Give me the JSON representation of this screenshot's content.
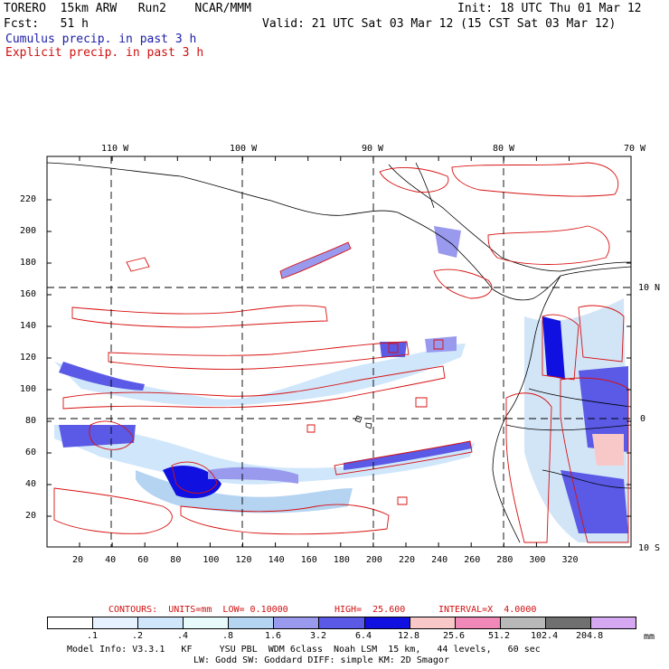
{
  "header": {
    "model_line": "TORERO  15km ARW   Run2    NCAR/MMM",
    "init_line": "Init: 18 UTC Thu 01 Mar 12",
    "fcst_line": "Fcst:   51 h",
    "valid_line": "Valid: 21 UTC Sat 03 Mar 12 (15 CST Sat 03 Mar 12)",
    "cumulus_label": "Cumulus precip. in past 3 h",
    "explicit_label": "Explicit precip. in past 3 h"
  },
  "map": {
    "lon_labels": [
      "110 W",
      "100 W",
      "90 W",
      "80 W",
      "70 W"
    ],
    "lat_labels": [
      "10 N",
      "0",
      "10 S"
    ],
    "x_ticks": [
      "20",
      "40",
      "60",
      "80",
      "100",
      "120",
      "140",
      "160",
      "180",
      "200",
      "220",
      "240",
      "260",
      "280",
      "300",
      "320"
    ],
    "y_ticks": [
      "20",
      "40",
      "60",
      "80",
      "100",
      "120",
      "140",
      "160",
      "180",
      "200",
      "220"
    ]
  },
  "contours": {
    "units_label": "CONTOURS:  UNITS=mm  LOW= 0.10000",
    "high_label": "HIGH=  25.600",
    "interval_label": "INTERVAL=X  4.0000"
  },
  "colorbar": {
    "labels": [
      ".1",
      ".2",
      ".4",
      ".8",
      "1.6",
      "3.2",
      "6.4",
      "12.8",
      "25.6",
      "51.2",
      "102.4",
      "204.8"
    ],
    "unit": "mm",
    "colors": [
      "#ffffff",
      "#e6f2ff",
      "#cfe6fb",
      "#e8fbfb",
      "#b4d4f2",
      "#9999ee",
      "#5a5ae6",
      "#1010e0",
      "#f8c8c8",
      "#f088b8",
      "#b8b8b8",
      "#707070",
      "#d6a8f2"
    ]
  },
  "footer": {
    "line1": "Model Info: V3.3.1   KF     YSU PBL  WDM 6class  Noah LSM  15 km,   44 levels,   60 sec",
    "line2": "LW: Godd SW: Goddard DIFF: simple KM: 2D Smagor"
  }
}
